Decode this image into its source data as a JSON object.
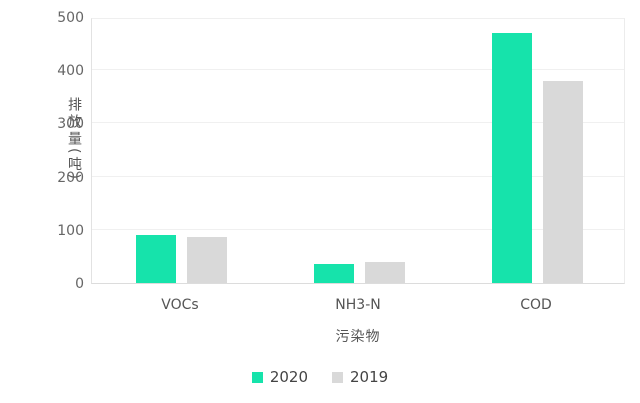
{
  "chart_data": {
    "type": "bar",
    "title": "",
    "xlabel": "污染物",
    "ylabel": "排放量(吨)",
    "categories": [
      "VOCs",
      "NH3-N",
      "COD"
    ],
    "series": [
      {
        "name": "2020",
        "color": "#16e3ab",
        "values": [
          90,
          35,
          470
        ]
      },
      {
        "name": "2019",
        "color": "#d9d9d9",
        "values": [
          86,
          40,
          380
        ]
      }
    ],
    "ylim": [
      0,
      500
    ],
    "yticks": [
      0,
      100,
      200,
      300,
      400,
      500
    ],
    "grid": true,
    "legend_position": "bottom",
    "colors": {
      "grid_line": "#f0f0f0",
      "axis_line": "#dcdcdc",
      "tick_text": "#666666",
      "label_text": "#555555",
      "background": "#ffffff"
    }
  }
}
